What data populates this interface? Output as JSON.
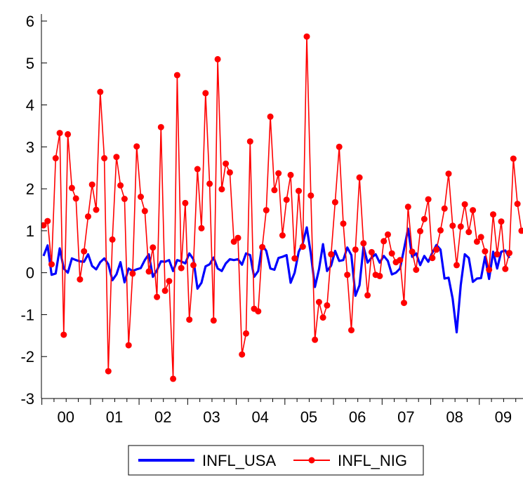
{
  "chart_data": {
    "type": "line",
    "ylim": [
      -3,
      6
    ],
    "y_ticks": [
      "-3",
      "-2",
      "-1",
      "0",
      "1",
      "2",
      "3",
      "4",
      "5",
      "6"
    ],
    "x_tick_labels": [
      "00",
      "01",
      "02",
      "03",
      "04",
      "05",
      "06",
      "07",
      "08",
      "09"
    ],
    "legend_position": "bottom",
    "grid": false,
    "series": [
      {
        "name": "INFL_USA",
        "color": "#0000ff",
        "marker": "none",
        "values": [
          0.4,
          0.65,
          -0.05,
          -0.02,
          0.58,
          0.1,
          0.0,
          0.34,
          0.3,
          0.27,
          0.26,
          0.44,
          0.16,
          0.08,
          0.25,
          0.34,
          0.2,
          -0.18,
          -0.04,
          0.25,
          -0.23,
          0.1,
          0.04,
          0.08,
          0.11,
          0.3,
          0.44,
          -0.1,
          0.06,
          0.27,
          0.26,
          0.3,
          0.04,
          0.3,
          0.27,
          0.22,
          0.46,
          0.32,
          -0.38,
          -0.24,
          0.15,
          0.2,
          0.36,
          0.1,
          0.04,
          0.22,
          0.32,
          0.3,
          0.32,
          0.19,
          0.46,
          0.42,
          -0.1,
          0.04,
          0.66,
          0.52,
          0.1,
          0.07,
          0.35,
          0.38,
          0.42,
          -0.24,
          0.0,
          0.5,
          0.7,
          1.08,
          0.45,
          -0.34,
          0.08,
          0.68,
          0.04,
          0.17,
          0.52,
          0.28,
          0.3,
          0.6,
          0.42,
          -0.55,
          -0.3,
          0.62,
          0.24,
          0.36,
          0.44,
          0.24,
          0.4,
          0.28,
          -0.04,
          0.0,
          0.1,
          0.56,
          1.05,
          0.38,
          0.46,
          0.18,
          0.4,
          0.26,
          0.48,
          0.66,
          0.55,
          -0.14,
          -0.12,
          -0.62,
          -1.42,
          -0.3,
          0.44,
          0.35,
          -0.22,
          -0.14,
          -0.13,
          0.38,
          -0.15,
          0.5,
          0.1,
          0.5,
          0.53,
          0.35
        ]
      },
      {
        "name": "INFL_NIG",
        "color": "#ff0000",
        "marker": "circle",
        "values": [
          1.13,
          1.23,
          0.2,
          2.73,
          3.33,
          -1.48,
          3.3,
          2.02,
          1.77,
          -0.16,
          0.51,
          1.34,
          2.1,
          1.5,
          4.31,
          2.73,
          -2.35,
          0.79,
          2.76,
          2.08,
          1.76,
          -1.73,
          -0.02,
          3.01,
          1.81,
          1.47,
          0.03,
          0.6,
          -0.58,
          3.47,
          -0.43,
          -0.2,
          -2.53,
          4.71,
          0.11,
          1.66,
          -1.12,
          0.18,
          2.47,
          1.06,
          4.28,
          2.12,
          -1.14,
          5.09,
          1.99,
          2.6,
          2.39,
          0.74,
          0.83,
          -1.95,
          -1.45,
          3.13,
          -0.86,
          -0.92,
          0.61,
          1.49,
          3.72,
          1.97,
          2.37,
          0.89,
          1.74,
          2.33,
          0.34,
          1.95,
          0.62,
          5.63,
          1.84,
          -1.6,
          -0.7,
          -1.07,
          -0.78,
          0.44,
          1.68,
          3.0,
          1.17,
          -0.05,
          -1.37,
          0.55,
          2.27,
          0.7,
          -0.54,
          0.49,
          -0.05,
          -0.08,
          0.75,
          0.91,
          0.46,
          0.25,
          0.3,
          -0.72,
          1.57,
          0.5,
          0.07,
          0.99,
          1.28,
          1.75,
          0.35,
          0.55,
          1.01,
          1.53,
          2.36,
          1.12,
          0.18,
          1.1,
          1.63,
          0.97,
          1.49,
          0.74,
          0.85,
          0.51,
          0.07,
          1.39,
          0.44,
          1.22,
          0.09,
          0.47,
          2.72,
          1.64,
          1.0
        ]
      }
    ]
  }
}
